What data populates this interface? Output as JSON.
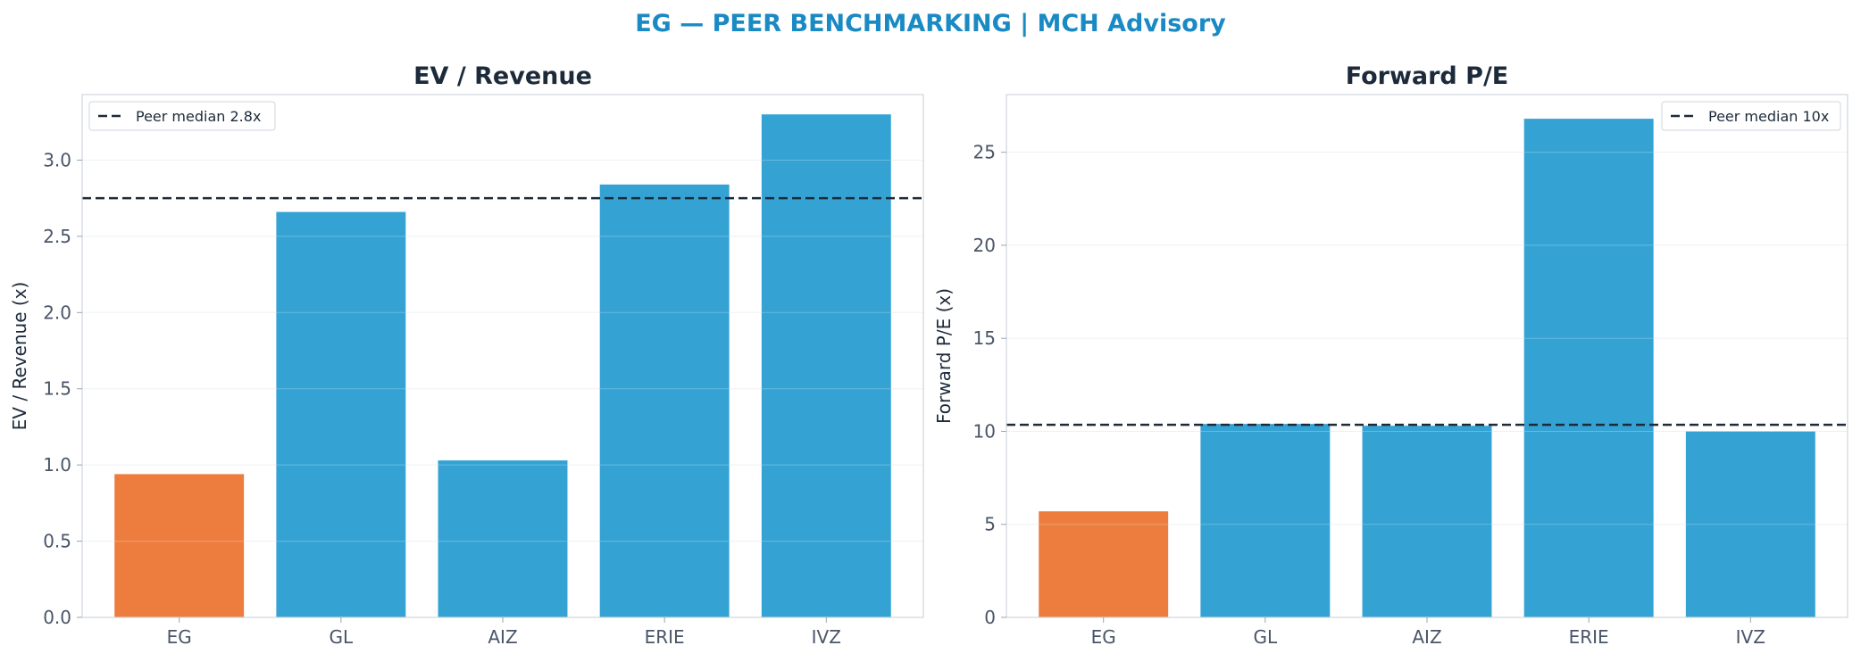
{
  "figure": {
    "title": "EG — PEER BENCHMARKING | MCH Advisory"
  },
  "colors": {
    "subject": "#ED7D3E",
    "peer": "#34A3D4",
    "median_line": "#1c2a3a",
    "title": "#1a8ac4"
  },
  "chart_data": [
    {
      "type": "bar",
      "title": "EV / Revenue",
      "xlabel": "",
      "ylabel": "EV / Revenue (x)",
      "categories": [
        "EG",
        "GL",
        "AIZ",
        "ERIE",
        "IVZ"
      ],
      "values": [
        0.94,
        2.66,
        1.03,
        2.84,
        3.3
      ],
      "highlight": "EG",
      "ylim": [
        0,
        3.43
      ],
      "yticks": [
        0.0,
        0.5,
        1.0,
        1.5,
        2.0,
        2.5,
        3.0
      ],
      "ytick_labels": [
        "0.0",
        "0.5",
        "1.0",
        "1.5",
        "2.0",
        "2.5",
        "3.0"
      ],
      "reference_line": {
        "value": 2.75,
        "label": "Peer median 2.8x",
        "style": "dashed"
      },
      "legend_position": "top-left",
      "grid": "y"
    },
    {
      "type": "bar",
      "title": "Forward P/E",
      "xlabel": "",
      "ylabel": "Forward P/E (x)",
      "categories": [
        "EG",
        "GL",
        "AIZ",
        "ERIE",
        "IVZ"
      ],
      "values": [
        5.7,
        10.4,
        10.3,
        26.8,
        10.0
      ],
      "highlight": "EG",
      "ylim": [
        0,
        28.1
      ],
      "yticks": [
        0,
        5,
        10,
        15,
        20,
        25
      ],
      "ytick_labels": [
        "0",
        "5",
        "10",
        "15",
        "20",
        "25"
      ],
      "reference_line": {
        "value": 10.35,
        "label": "Peer median 10x",
        "style": "dashed"
      },
      "legend_position": "top-right",
      "grid": "y"
    }
  ]
}
